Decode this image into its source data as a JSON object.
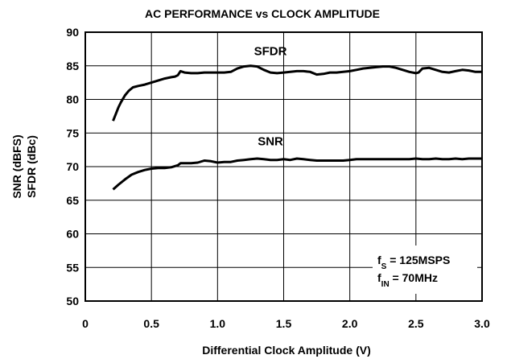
{
  "chart_data": {
    "type": "line",
    "title": "AC PERFORMANCE vs CLOCK AMPLITUDE",
    "xlabel": "Differential Clock Amplitude (V)",
    "ylabel": [
      "SNR (dBFS)",
      "SFDR (dBc)"
    ],
    "xlim": [
      0,
      3.0
    ],
    "ylim": [
      50,
      90
    ],
    "xticks": [
      "0",
      "0.5",
      "1.0",
      "1.5",
      "2.0",
      "2.5",
      "3.0"
    ],
    "yticks": [
      "90",
      "85",
      "80",
      "75",
      "70",
      "65",
      "60",
      "55",
      "50"
    ],
    "grid": true,
    "annotation": {
      "line1": {
        "main": "f",
        "sub": "S",
        "rest": " = 125MSPS"
      },
      "line2": {
        "main": "f",
        "sub": "IN",
        "rest": " = 70MHz"
      }
    },
    "series": [
      {
        "name": "SFDR",
        "x": [
          0.21,
          0.23,
          0.25,
          0.27,
          0.3,
          0.33,
          0.36,
          0.4,
          0.45,
          0.5,
          0.55,
          0.6,
          0.65,
          0.68,
          0.7,
          0.72,
          0.75,
          0.8,
          0.85,
          0.9,
          0.95,
          1.0,
          1.05,
          1.1,
          1.15,
          1.2,
          1.25,
          1.3,
          1.35,
          1.4,
          1.45,
          1.5,
          1.55,
          1.6,
          1.65,
          1.7,
          1.75,
          1.8,
          1.85,
          1.9,
          1.95,
          2.0,
          2.05,
          2.1,
          2.15,
          2.2,
          2.25,
          2.3,
          2.35,
          2.4,
          2.45,
          2.5,
          2.52,
          2.55,
          2.6,
          2.65,
          2.7,
          2.75,
          2.8,
          2.85,
          2.9,
          2.95,
          3.0
        ],
        "y": [
          76.8,
          77.8,
          78.8,
          79.6,
          80.6,
          81.3,
          81.8,
          82.0,
          82.2,
          82.5,
          82.8,
          83.1,
          83.3,
          83.4,
          83.6,
          84.2,
          84.0,
          83.9,
          83.9,
          84.0,
          84.0,
          84.0,
          84.0,
          84.1,
          84.6,
          84.9,
          85.0,
          84.9,
          84.4,
          84.0,
          83.9,
          84.0,
          84.1,
          84.2,
          84.2,
          84.1,
          83.7,
          83.8,
          84.0,
          84.0,
          84.1,
          84.2,
          84.4,
          84.6,
          84.7,
          84.8,
          84.9,
          84.9,
          84.7,
          84.4,
          84.1,
          83.9,
          84.0,
          84.6,
          84.7,
          84.4,
          84.1,
          84.0,
          84.2,
          84.4,
          84.3,
          84.1,
          84.1
        ]
      },
      {
        "name": "SNR",
        "x": [
          0.21,
          0.25,
          0.3,
          0.35,
          0.4,
          0.45,
          0.5,
          0.55,
          0.6,
          0.65,
          0.7,
          0.72,
          0.75,
          0.8,
          0.85,
          0.9,
          0.95,
          1.0,
          1.05,
          1.1,
          1.15,
          1.2,
          1.25,
          1.3,
          1.35,
          1.4,
          1.45,
          1.5,
          1.55,
          1.6,
          1.65,
          1.7,
          1.75,
          1.8,
          1.85,
          1.9,
          1.95,
          2.0,
          2.05,
          2.1,
          2.15,
          2.2,
          2.25,
          2.3,
          2.35,
          2.4,
          2.45,
          2.5,
          2.55,
          2.6,
          2.65,
          2.7,
          2.75,
          2.8,
          2.85,
          2.9,
          2.95,
          3.0
        ],
        "y": [
          66.6,
          67.3,
          68.1,
          68.8,
          69.2,
          69.5,
          69.7,
          69.8,
          69.8,
          69.9,
          70.2,
          70.5,
          70.5,
          70.5,
          70.6,
          70.9,
          70.8,
          70.6,
          70.7,
          70.7,
          70.9,
          71.0,
          71.1,
          71.2,
          71.1,
          71.0,
          71.0,
          71.1,
          71.0,
          71.2,
          71.1,
          71.0,
          70.9,
          70.9,
          70.9,
          70.9,
          70.9,
          71.0,
          71.1,
          71.1,
          71.1,
          71.1,
          71.1,
          71.1,
          71.1,
          71.1,
          71.1,
          71.2,
          71.1,
          71.1,
          71.2,
          71.1,
          71.1,
          71.2,
          71.1,
          71.2,
          71.2,
          71.2
        ]
      }
    ]
  }
}
